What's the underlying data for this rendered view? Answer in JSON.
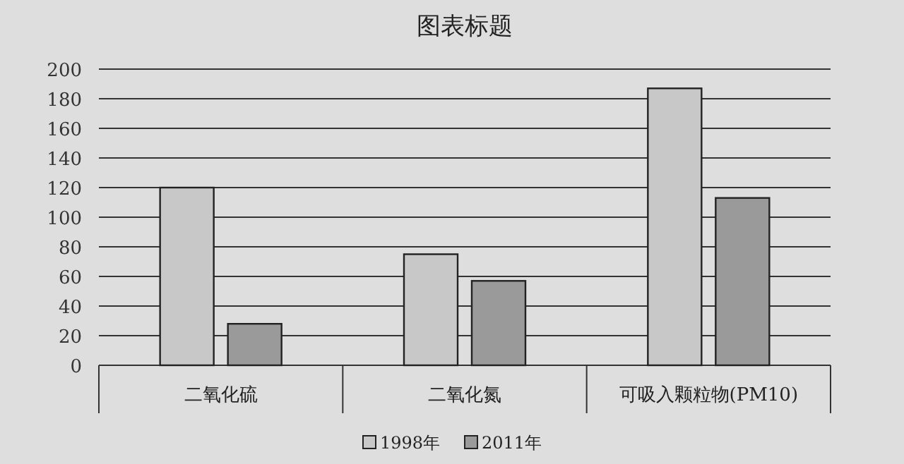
{
  "chart_data": {
    "type": "bar",
    "title": "图表标题",
    "categories": [
      "二氧化硫",
      "二氧化氮",
      "可吸入颗粒物(PM10)"
    ],
    "series": [
      {
        "name": "1998年",
        "color": "#c8c8c8",
        "values": [
          120,
          75,
          187
        ]
      },
      {
        "name": "2011年",
        "color": "#9a9a9a",
        "values": [
          28,
          57,
          113
        ]
      }
    ],
    "ylim": [
      0,
      200
    ],
    "yticks": [
      0,
      20,
      40,
      60,
      80,
      100,
      120,
      140,
      160,
      180,
      200
    ],
    "grid": "y",
    "legend": "bottom"
  }
}
